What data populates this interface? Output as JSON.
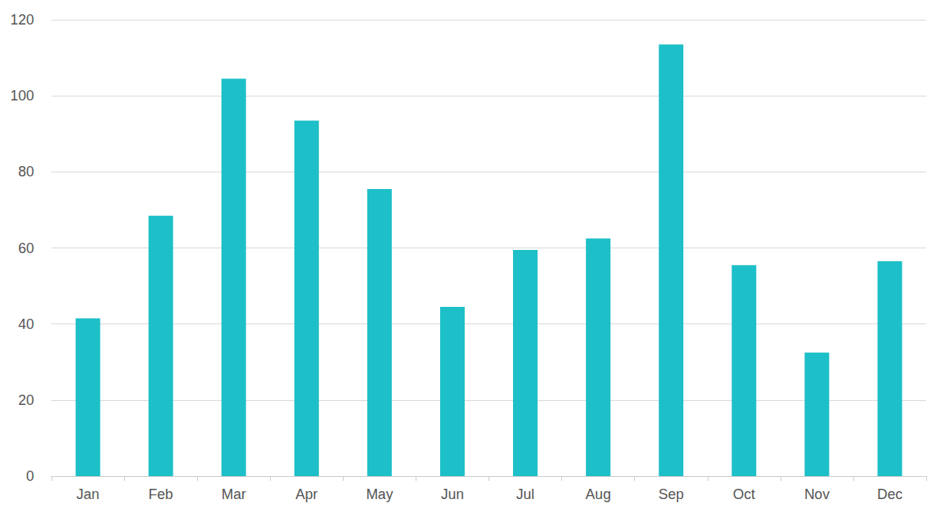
{
  "chart_data": {
    "type": "bar",
    "categories": [
      "Jan",
      "Feb",
      "Mar",
      "Apr",
      "May",
      "Jun",
      "Jul",
      "Aug",
      "Sep",
      "Oct",
      "Nov",
      "Dec"
    ],
    "values": [
      41.5,
      68.5,
      104.5,
      93.5,
      75.5,
      44.5,
      59.5,
      62.5,
      113.5,
      55.5,
      32.5,
      56.5
    ],
    "color": "#1dbfc8",
    "ylim": [
      0,
      120
    ],
    "yticks": [
      0,
      20,
      40,
      60,
      80,
      100,
      120
    ],
    "grid": true
  }
}
